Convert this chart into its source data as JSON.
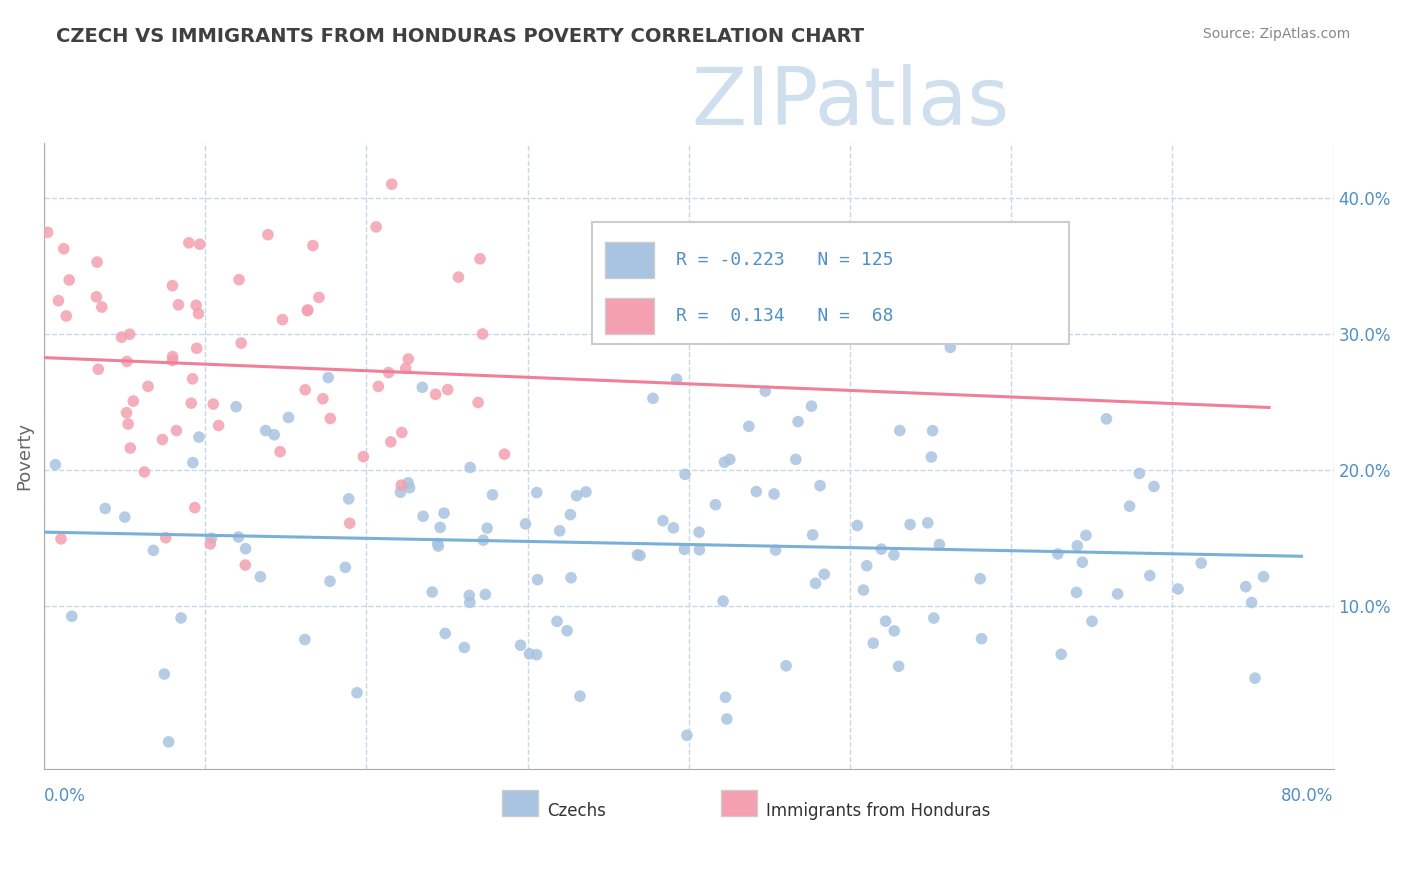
{
  "title": "CZECH VS IMMIGRANTS FROM HONDURAS POVERTY CORRELATION CHART",
  "source": "Source: ZipAtlas.com",
  "ylabel": "Poverty",
  "xmin": 0.0,
  "xmax": 0.8,
  "ymin": -0.02,
  "ymax": 0.44,
  "czech_color": "#a8c4e0",
  "honduras_color": "#f4a0b0",
  "czech_line_color": "#7ab0d8",
  "honduras_line_color": "#f08098",
  "R_czech": -0.223,
  "N_czech": 125,
  "R_honduras": 0.134,
  "N_honduras": 68,
  "watermark": "ZIPatlas",
  "watermark_color": "#c8daea",
  "background_color": "#ffffff",
  "grid_color": "#c8d8e8",
  "title_color": "#404040",
  "axis_label_color": "#5090c8",
  "legend_R_color": "#5090c8"
}
